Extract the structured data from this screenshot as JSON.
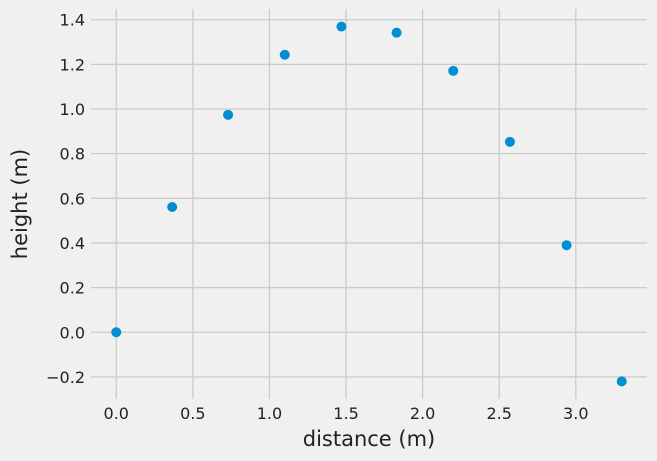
{
  "chart_data": {
    "type": "scatter",
    "x_label": "distance (m)",
    "y_label": "height (m)",
    "color": "#008fd5",
    "grid": true,
    "x": [
      0,
      0.365,
      0.73,
      1.1,
      1.47,
      1.83,
      2.2,
      2.57,
      2.94,
      3.3
    ],
    "values": [
      0,
      0.561,
      0.974,
      1.243,
      1.369,
      1.342,
      1.171,
      0.853,
      0.39,
      -0.22
    ],
    "xlim": [
      -0.165,
      3.465
    ],
    "ylim": [
      -0.299,
      1.448
    ],
    "xticks": [
      {
        "value": 0,
        "label": "0.0"
      },
      0.5,
      {
        "value": 1,
        "label": "1.0"
      },
      1.5,
      {
        "value": 2,
        "label": "2.0"
      },
      2.5,
      {
        "value": 3,
        "label": "3.0"
      }
    ],
    "yticks": [
      {
        "value": -0.2,
        "label": "−0.2"
      },
      {
        "value": 0,
        "label": "0.0"
      },
      0.2,
      0.4,
      0.6,
      0.8,
      {
        "value": 1,
        "label": "1.0"
      },
      1.2,
      1.4
    ]
  }
}
